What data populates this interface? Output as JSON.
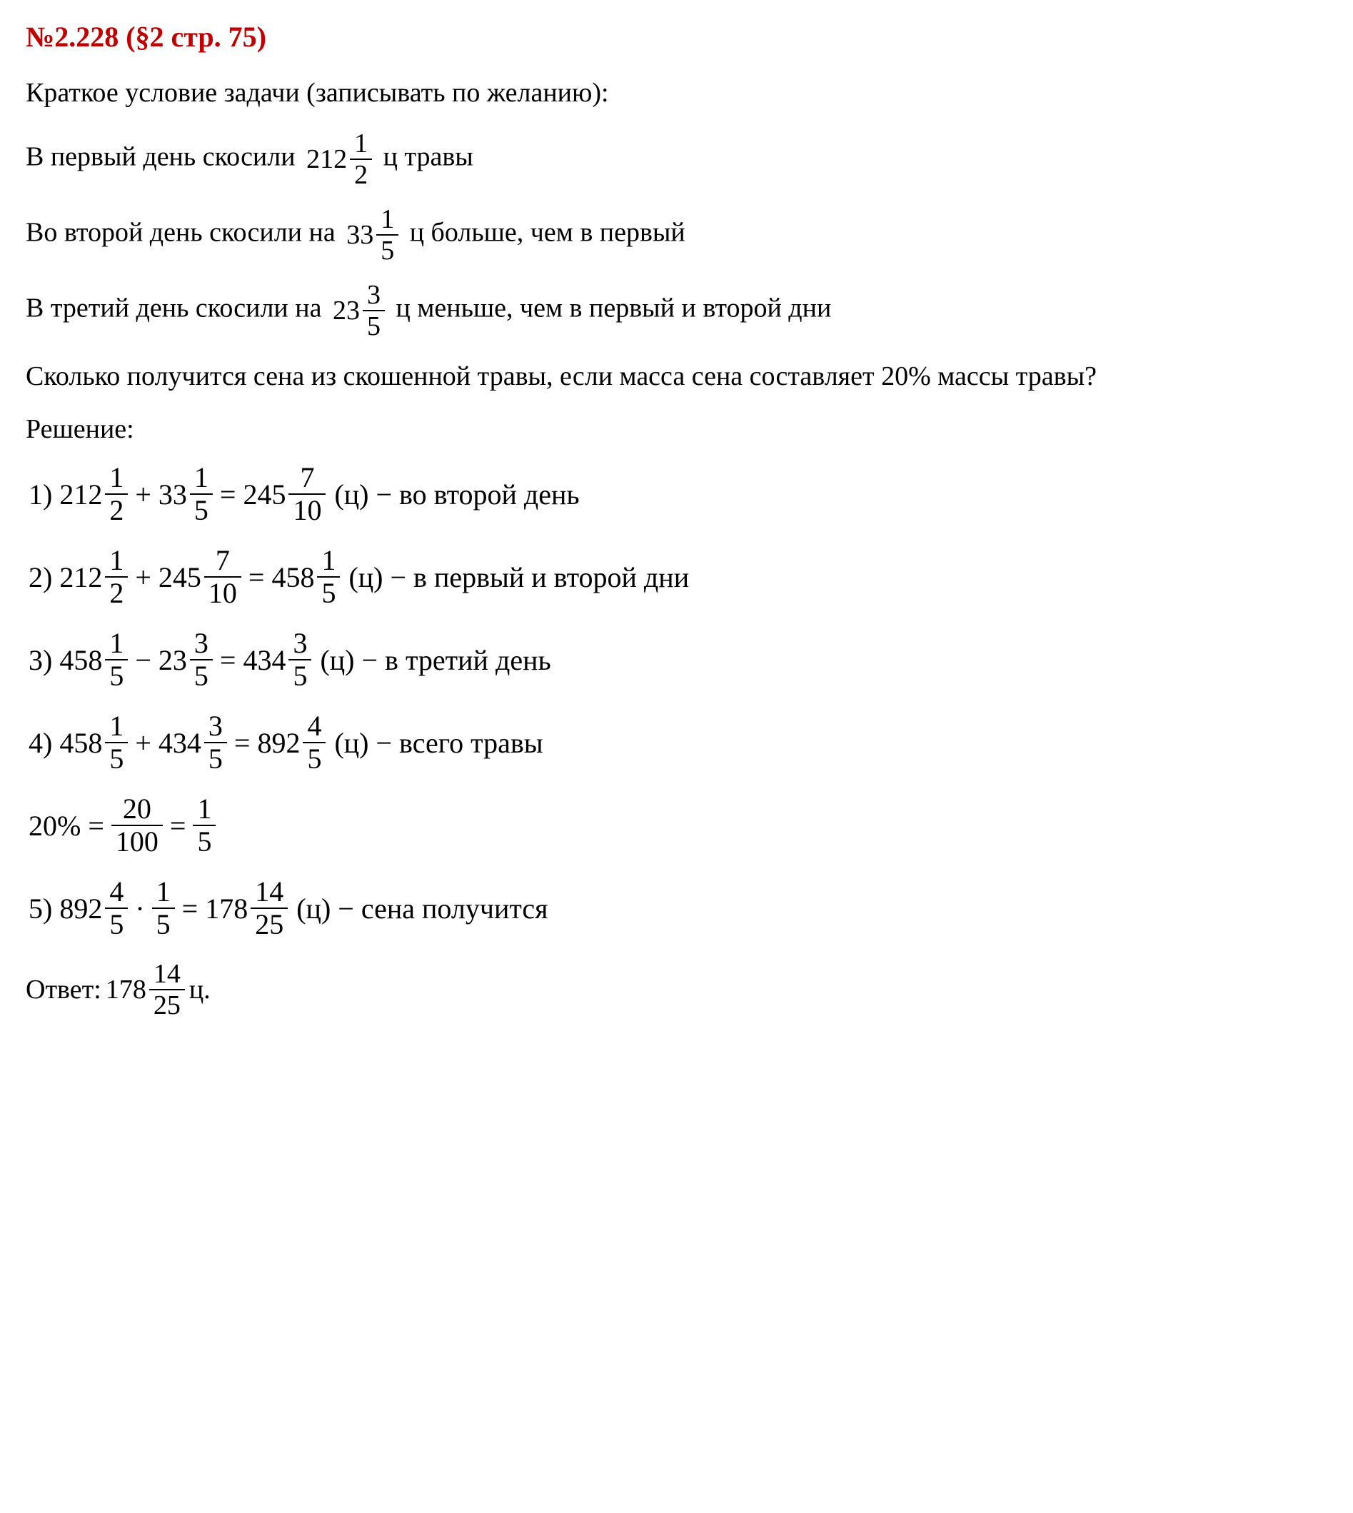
{
  "heading": "№2.228 (§2 стр. 75)",
  "intro": "Краткое условие задачи (записывать по желанию):",
  "cond1_pre": "В первый день скосили ",
  "cond1_mix": {
    "w": "212",
    "n": "1",
    "d": "2"
  },
  "cond1_post": " ц травы",
  "cond2_pre": "Во второй день скосили на ",
  "cond2_mix": {
    "w": "33",
    "n": "1",
    "d": "5"
  },
  "cond2_post": " ц больше, чем в первый",
  "cond3_pre": "В третий день скосили на ",
  "cond3_mix": {
    "w": "23",
    "n": "3",
    "d": "5"
  },
  "cond3_post": " ц меньше, чем в первый и второй дни",
  "question": "Сколько получится сена из скошенной травы, если масса сена составляет 20% массы травы?",
  "solution_label": "Решение:",
  "steps": [
    {
      "idx": "1)",
      "a": {
        "w": "212",
        "n": "1",
        "d": "2"
      },
      "op": " + ",
      "b": {
        "w": "33",
        "n": "1",
        "d": "5"
      },
      "eq": " = ",
      "r": {
        "w": "245",
        "n": "7",
        "d": "10"
      },
      "tail": " (ц) − во второй день"
    },
    {
      "idx": "2)",
      "a": {
        "w": "212",
        "n": "1",
        "d": "2"
      },
      "op": " + ",
      "b": {
        "w": "245",
        "n": "7",
        "d": "10"
      },
      "eq": " = ",
      "r": {
        "w": "458",
        "n": "1",
        "d": "5"
      },
      "tail": " (ц) − в первый и второй дни"
    },
    {
      "idx": "3)",
      "a": {
        "w": "458",
        "n": "1",
        "d": "5"
      },
      "op": " − ",
      "b": {
        "w": "23",
        "n": "3",
        "d": "5"
      },
      "eq": " = ",
      "r": {
        "w": "434",
        "n": "3",
        "d": "5"
      },
      "tail": " (ц) − в третий день"
    },
    {
      "idx": "4)",
      "a": {
        "w": "458",
        "n": "1",
        "d": "5"
      },
      "op": " + ",
      "b": {
        "w": "434",
        "n": "3",
        "d": "5"
      },
      "eq": " = ",
      "r": {
        "w": "892",
        "n": "4",
        "d": "5"
      },
      "tail": " (ц) − всего травы"
    }
  ],
  "percent_line": {
    "lead": "20% = ",
    "f1": {
      "n": "20",
      "d": "100"
    },
    "mid": " = ",
    "f2": {
      "n": "1",
      "d": "5"
    }
  },
  "step5": {
    "idx": "5)",
    "a": {
      "w": "892",
      "n": "4",
      "d": "5"
    },
    "op": " · ",
    "b": {
      "n": "1",
      "d": "5"
    },
    "eq": " = ",
    "r": {
      "w": "178",
      "n": "14",
      "d": "25"
    },
    "tail": " (ц) − сена получится"
  },
  "answer_pre": "Ответ: ",
  "answer_mix": {
    "w": "178",
    "n": "14",
    "d": "25"
  },
  "answer_post": " ц.",
  "colors": {
    "heading": "#c00000",
    "text": "#000000",
    "bg": "#ffffff"
  },
  "typography": {
    "body_font": "Times New Roman",
    "heading_fontsize_pt": 30,
    "body_fontsize_pt": 28
  }
}
